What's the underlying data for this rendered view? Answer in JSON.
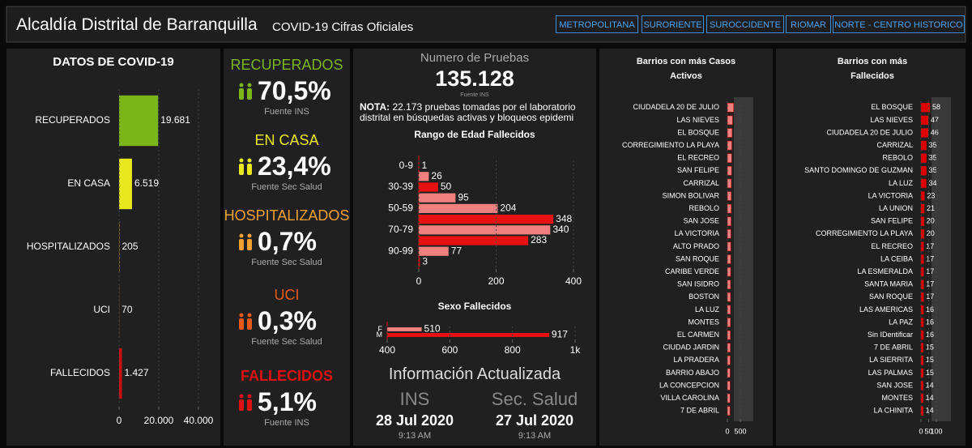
{
  "header": {
    "title": "Alcaldía Distrital de Barranquilla",
    "subtitle": "COVID-19 Cifras Oficiales"
  },
  "nav": [
    "METROPOLITANA",
    "SURORIENTE",
    "SUROCCIDENTE",
    "RIOMAR",
    "NORTE - CENTRO HISTORICO"
  ],
  "cards": [
    {
      "label": "RECUPERADOS",
      "value": "70,5%",
      "source": "Fuente INS",
      "color": "#7cb518"
    },
    {
      "label": "EN CASA",
      "value": "23,4%",
      "source": "Fuente Sec Salud",
      "color": "#e8e81c"
    },
    {
      "label": "HOSPITALIZADOS",
      "value": "0,7%",
      "source": "Fuente Sec Salud",
      "color": "#f0a030"
    },
    {
      "label": "UCI",
      "value": "0,3%",
      "source": "Fuente Sec Salud",
      "color": "#e85a10"
    },
    {
      "label": "FALLECIDOS",
      "value": "5,1%",
      "source": "Fuente INS",
      "color": "#e01010"
    }
  ],
  "tests": {
    "title": "Numero de Pruebas",
    "value": "135.128",
    "source": "Fuente INS",
    "note_label": "NOTA:",
    "note": "22.173 pruebas tomadas por el laboratorio distrital en búsquedas activas y bloqueos epidemi"
  },
  "info": {
    "title": "Información Actualizada",
    "sources": [
      {
        "name": "INS",
        "date": "28 Jul 2020",
        "time": "9:13 AM"
      },
      {
        "name": "Sec. Salud",
        "date": "27 Jul 2020",
        "time": "9:13 AM"
      }
    ]
  },
  "chart_data": [
    {
      "type": "hbar",
      "title": "DATOS DE COVID-19",
      "categories": [
        "RECUPERADOS",
        "EN CASA",
        "HOSPITALIZADOS",
        "UCI",
        "FALLECIDOS"
      ],
      "values": [
        19681,
        6519,
        205,
        70,
        1427
      ],
      "value_labels": [
        "19.681",
        "6.519",
        "205",
        "70",
        "1.427"
      ],
      "colors": [
        "#7cb518",
        "#e8e81c",
        "#f0a030",
        "#e85a10",
        "#d01010"
      ],
      "xlim": [
        0,
        40000
      ],
      "xticks": [
        0,
        {
          "value": 20000,
          "label": "20.000"
        },
        {
          "value": 40000,
          "label": "40.000"
        }
      ]
    },
    {
      "type": "hbar",
      "title": "Rango de Edad Fallecidos",
      "categories": [
        "0-9",
        null,
        "30-39",
        null,
        "50-59",
        null,
        "70-79",
        null,
        "90-99",
        null
      ],
      "values": [
        1,
        26,
        50,
        95,
        204,
        348,
        340,
        283,
        77,
        3
      ],
      "colors": [
        "#e81010",
        "#f08080",
        "#e81010",
        "#f08080",
        "#f08080",
        "#e81010",
        "#f08080",
        "#e81010",
        "#f08080",
        "#e81010"
      ],
      "xlim": [
        0,
        400
      ],
      "xticks": [
        0,
        200,
        400
      ]
    },
    {
      "type": "hbar",
      "title": "Sexo Fallecidos",
      "categories": [
        "F",
        "M"
      ],
      "values": [
        510,
        917
      ],
      "colors": [
        "#f08080",
        "#e81010"
      ],
      "xlim": [
        400,
        1000
      ],
      "xticks": [
        400,
        600,
        800,
        {
          "value": 1000,
          "label": "1k"
        }
      ]
    },
    {
      "type": "hbar",
      "title": "Barrios con más Casos Activos",
      "categories": [
        "CIUDADELA 20 DE JULIO",
        "LAS NIEVES",
        "EL BOSQUE",
        "CORREGIMIENTO LA PLAYA",
        "EL RECREO",
        "SAN FELIPE",
        "CARRIZAL",
        "SIMON BOLIVAR",
        "REBOLO",
        "SAN JOSE",
        "LA VICTORIA",
        "ALTO PRADO",
        "SAN ROQUE",
        "CARIBE VERDE",
        "SAN ISIDRO",
        "BOSTON",
        "LA LUZ",
        "MONTES",
        "EL CARMEN",
        "CIUDAD JARDIN",
        "LA PRADERA",
        "BARRIO ABAJO",
        "LA CONCEPCION",
        "VILLA CAROLINA",
        "7 DE ABRIL"
      ],
      "values": [
        240,
        200,
        180,
        170,
        165,
        160,
        150,
        148,
        145,
        140,
        135,
        130,
        128,
        125,
        122,
        120,
        118,
        115,
        112,
        110,
        108,
        105,
        103,
        100,
        98
      ],
      "color": "#f08080",
      "xlim": [
        0,
        1000
      ],
      "xticks": [
        0,
        500
      ]
    },
    {
      "type": "hbar",
      "title": "Barrios con más Fallecidos",
      "categories": [
        "EL BOSQUE",
        "LAS NIEVES",
        "CIUDADELA 20 DE JULIO",
        "CARRIZAL",
        "REBOLO",
        "SANTO DOMINGO DE GUZMAN",
        "LA LUZ",
        "LA VICTORIA",
        "LA UNION",
        "SAN FELIPE",
        "CORREGIMIENTO LA PLAYA",
        "EL RECREO",
        "LA CEIBA",
        "LA ESMERALDA",
        "SANTA MARIA",
        "SAN ROQUE",
        "LAS AMERICAS",
        "LA PAZ",
        "Sin IDentificar",
        "7 DE ABRIL",
        "LA SIERRITA",
        "LAS PALMAS",
        "SAN JOSE",
        "MONTES",
        "LA CHINITA"
      ],
      "values": [
        58,
        47,
        46,
        35,
        35,
        35,
        34,
        23,
        21,
        20,
        20,
        17,
        17,
        17,
        17,
        17,
        16,
        16,
        16,
        15,
        15,
        15,
        14,
        14,
        14
      ],
      "color": "#e00000",
      "xlim": [
        0,
        100
      ],
      "xticks": [
        0,
        50,
        100
      ]
    }
  ]
}
